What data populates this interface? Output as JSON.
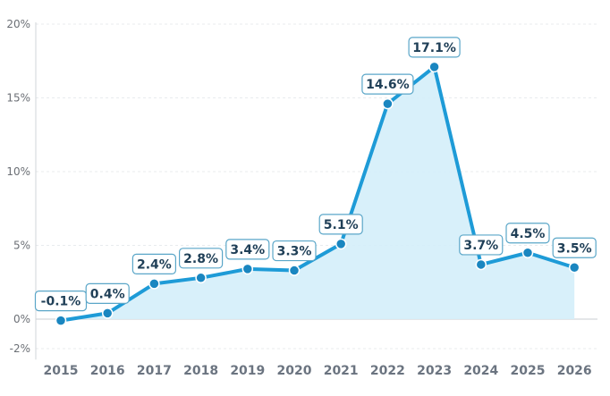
{
  "chart_data": {
    "type": "area",
    "title": "",
    "xlabel": "",
    "ylabel": "",
    "categories": [
      "2015",
      "2016",
      "2017",
      "2018",
      "2019",
      "2020",
      "2021",
      "2022",
      "2023",
      "2024",
      "2025",
      "2026"
    ],
    "values": [
      -0.1,
      0.4,
      2.4,
      2.8,
      3.4,
      3.3,
      5.1,
      14.6,
      17.1,
      3.7,
      4.5,
      3.5
    ],
    "data_labels": [
      "-0.1%",
      "0.4%",
      "2.4%",
      "2.8%",
      "3.4%",
      "3.3%",
      "5.1%",
      "14.6%",
      "17.1%",
      "3.7%",
      "4.5%",
      "3.5%"
    ],
    "yticks": [
      -2,
      0,
      5,
      10,
      15,
      20
    ],
    "ytick_labels": [
      "-2%",
      "0%",
      "5%",
      "10%",
      "15%",
      "20%"
    ],
    "ylim": [
      -2.5,
      20
    ],
    "grid": true,
    "colors": {
      "line": "#1e9bd7",
      "fill": "#d4eefa",
      "marker": "#1a86c0"
    }
  }
}
